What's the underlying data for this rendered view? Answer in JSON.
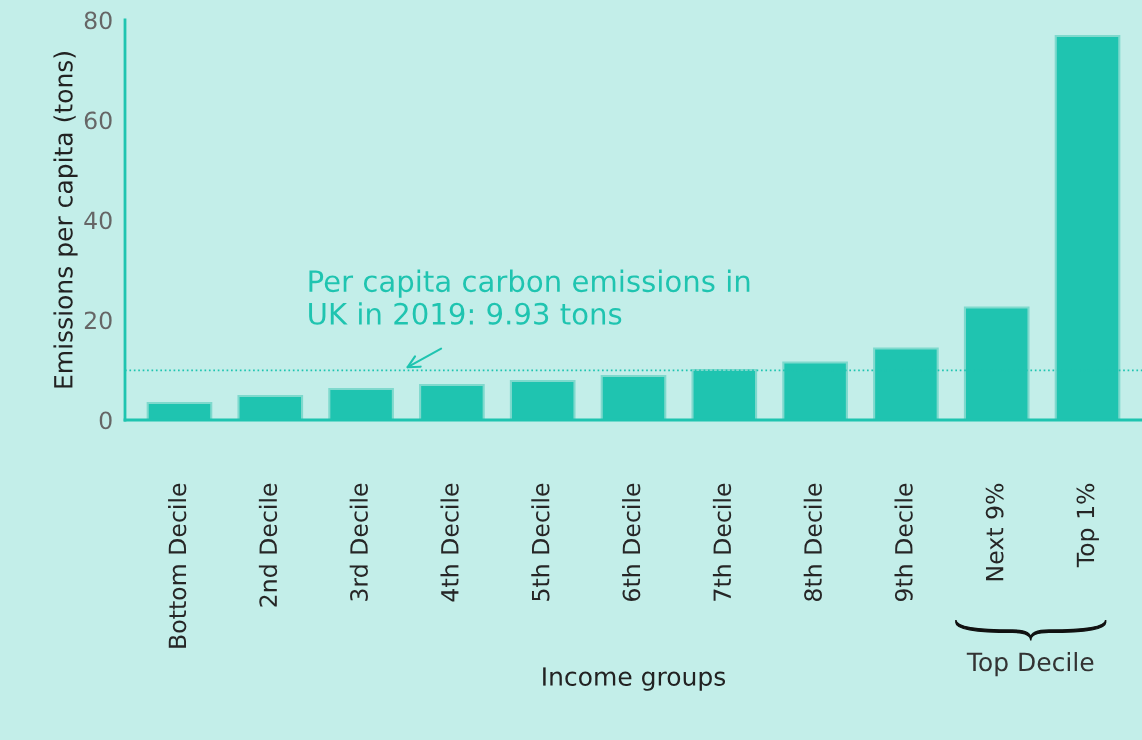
{
  "chart_data": {
    "type": "bar",
    "categories": [
      "Bottom Decile",
      "2nd Decile",
      "3rd Decile",
      "4th Decile",
      "5th Decile",
      "6th Decile",
      "7th Decile",
      "8th Decile",
      "9th Decile",
      "Next 9%",
      "Top 1%"
    ],
    "values": [
      3.4,
      4.8,
      6.2,
      7.0,
      7.8,
      8.8,
      10.0,
      11.5,
      14.3,
      22.5,
      76.8
    ],
    "color": "#1fc4b0",
    "xlabel": "Income groups",
    "ylabel": "Emissions per capita (tons)",
    "ylim": [
      0,
      80
    ],
    "yticks": [
      0,
      20,
      40,
      60,
      80
    ],
    "ref_lines": [
      {
        "axis": "y",
        "value": 9.93,
        "label": "Per capita carbon emissions in\nUK in 2019: 9.93 tons",
        "color": "#1fc4b0",
        "line_style": "dotted"
      }
    ],
    "annotations": [
      "Top Decile"
    ],
    "grid": false
  }
}
